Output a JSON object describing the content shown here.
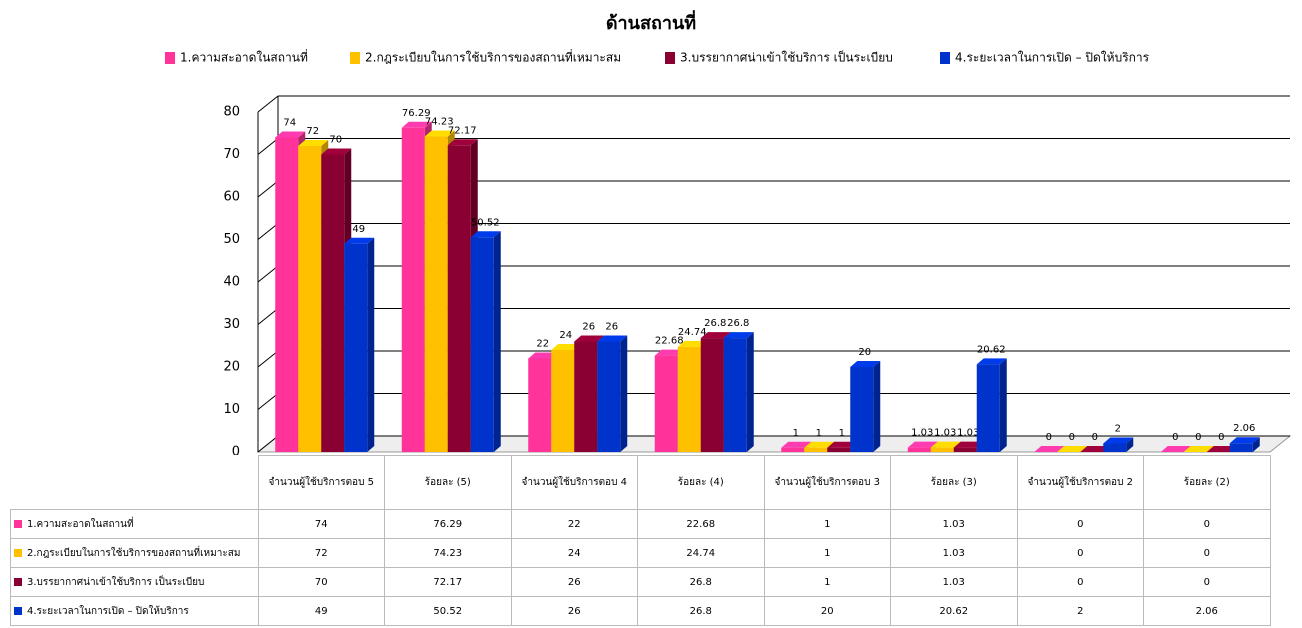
{
  "chart_data": {
    "type": "bar3d",
    "title": "ด้านสถานที่",
    "categories": [
      "จำนวนผู้ใช้บริการตอบ 5",
      "ร้อยละ (5)",
      "จำนวนผู้ใช้บริการตอบ 4",
      "ร้อยละ (4)",
      "จำนวนผู้ใช้บริการตอบ 3",
      "ร้อยละ (3)",
      "จำนวนผู้ใช้บริการตอบ 2",
      "ร้อยละ (2)"
    ],
    "series": [
      {
        "name": "1.ความสะอาดในสถานที่",
        "color": "#ff3399",
        "values": [
          74,
          76.29,
          22,
          22.68,
          1,
          1.03,
          0,
          0
        ]
      },
      {
        "name": "2.กฎระเบียบในการใช้บริการของสถานที่เหมาะสม",
        "color": "#ffc000",
        "values": [
          72,
          74.23,
          24,
          24.74,
          1,
          1.03,
          0,
          0
        ]
      },
      {
        "name": "3.บรรยากาศน่าเข้าใช้บริการ เป็นระเบียบ",
        "color": "#8b0033",
        "values": [
          70,
          72.17,
          26,
          26.8,
          1,
          1.03,
          0,
          0
        ]
      },
      {
        "name": "4.ระยะเวลาในการเปิด – ปิดให้บริการ",
        "color": "#0033cc",
        "values": [
          49,
          50.52,
          26,
          26.8,
          20,
          20.62,
          2,
          2.06
        ]
      }
    ],
    "ylim": [
      0,
      80
    ],
    "yticks": [
      0,
      10,
      20,
      30,
      40,
      50,
      60,
      70,
      80
    ],
    "grid": true
  }
}
